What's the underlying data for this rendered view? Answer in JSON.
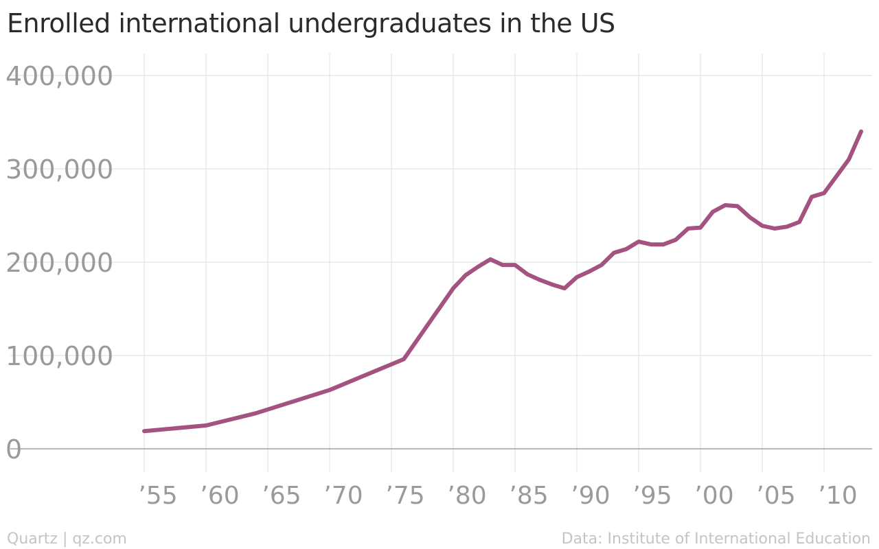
{
  "title": "Enrolled international undergraduates in the US",
  "footer": {
    "credit": "Quartz | qz.com",
    "source": "Data: Institute of International Education"
  },
  "colors": {
    "line": "#a4527f",
    "grid": "#e8e8e8",
    "axis": "#a0a0a0",
    "tick_text": "#9a9a9a"
  },
  "chart_data": {
    "type": "line",
    "title": "Enrolled international undergraduates in the US",
    "xlabel": "",
    "ylabel": "",
    "xlim": [
      1949,
      1963.5
    ],
    "ylim": [
      0,
      400000
    ],
    "xlim_full": [
      1949,
      2013.5
    ],
    "grid": true,
    "y_ticks": [
      0,
      100000,
      200000,
      300000,
      400000
    ],
    "y_tick_labels": [
      "0",
      "100,000",
      "200,000",
      "300,000",
      "400,000"
    ],
    "x_ticks": [
      1955,
      1960,
      1965,
      1970,
      1975,
      1980,
      1985,
      1990,
      1995,
      2000,
      2005,
      2010
    ],
    "x_tick_labels": [
      "’55",
      "’60",
      "’65",
      "’70",
      "’75",
      "’80",
      "’85",
      "’90",
      "’95",
      "’00",
      "’05",
      "’10"
    ],
    "series": [
      {
        "x": [
          1955,
          1960,
          1964,
          1970,
          1976,
          1980,
          1981,
          1982,
          1983,
          1984,
          1985,
          1986,
          1987,
          1988,
          1989,
          1990,
          1991,
          1992,
          1993,
          1994,
          1995,
          1996,
          1997,
          1998,
          1999,
          2000,
          2001,
          2002,
          2003,
          2004,
          2005,
          2006,
          2007,
          2008,
          2009,
          2010,
          2011,
          2012,
          2013
        ],
        "values": [
          19000,
          25000,
          38000,
          63000,
          96000,
          172000,
          186000,
          195000,
          203000,
          197000,
          197000,
          187000,
          181000,
          176000,
          172000,
          184000,
          190000,
          197000,
          210000,
          214000,
          222000,
          219000,
          219000,
          224000,
          236000,
          237000,
          254000,
          261000,
          260000,
          248000,
          239000,
          236000,
          238000,
          243000,
          270000,
          274000,
          292000,
          310000,
          340000
        ]
      }
    ]
  }
}
